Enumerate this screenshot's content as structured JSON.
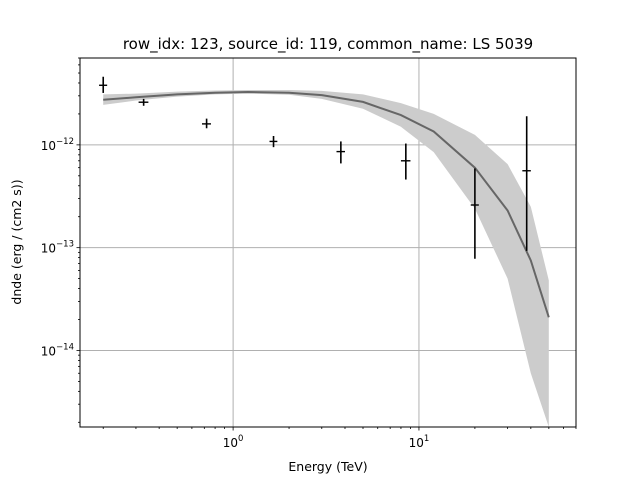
{
  "chart_data": {
    "type": "scatter",
    "title": "row_idx: 123, source_id: 119, common_name: LS 5039",
    "xlabel": "Energy (TeV)",
    "ylabel": "dnde (erg / (cm2 s))",
    "xscale": "log",
    "yscale": "log",
    "xlim": [
      0.15,
      70
    ],
    "ylim": [
      1.8e-15,
      7e-12
    ],
    "grid": true,
    "x_tick_labels": [
      {
        "value": 1,
        "base": "10",
        "exp": "0"
      },
      {
        "value": 10,
        "base": "10",
        "exp": "1"
      }
    ],
    "y_tick_labels": [
      {
        "value": 1e-14,
        "base": "10",
        "exp": "−14"
      },
      {
        "value": 1e-13,
        "base": "10",
        "exp": "−13"
      },
      {
        "value": 1e-12,
        "base": "10",
        "exp": "−12"
      }
    ],
    "flux_points": [
      {
        "x": 0.2,
        "x_lo": 0.19,
        "x_hi": 0.21,
        "y": 3.8e-12,
        "y_lo": 3.2e-12,
        "y_hi": 4.6e-12
      },
      {
        "x": 0.33,
        "x_lo": 0.31,
        "x_hi": 0.35,
        "y": 2.6e-12,
        "y_lo": 2.4e-12,
        "y_hi": 2.8e-12
      },
      {
        "x": 0.72,
        "x_lo": 0.68,
        "x_hi": 0.76,
        "y": 1.6e-12,
        "y_lo": 1.45e-12,
        "y_hi": 1.8e-12
      },
      {
        "x": 1.65,
        "x_lo": 1.57,
        "x_hi": 1.73,
        "y": 1.08e-12,
        "y_lo": 9.5e-13,
        "y_hi": 1.22e-12
      },
      {
        "x": 3.8,
        "x_lo": 3.6,
        "x_hi": 4.0,
        "y": 8.6e-13,
        "y_lo": 6.6e-13,
        "y_hi": 1.08e-12
      },
      {
        "x": 8.5,
        "x_lo": 8.0,
        "x_hi": 9.0,
        "y": 7e-13,
        "y_lo": 4.6e-13,
        "y_hi": 1.03e-12
      },
      {
        "x": 20,
        "x_lo": 19,
        "x_hi": 21,
        "y": 2.6e-13,
        "y_lo": 7.8e-14,
        "y_hi": 5.9e-13
      },
      {
        "x": 38,
        "x_lo": 36,
        "x_hi": 40,
        "y": 5.6e-13,
        "y_lo": 9.3e-14,
        "y_hi": 1.9e-12
      }
    ],
    "model_curve": {
      "x": [
        0.2,
        0.3,
        0.5,
        0.8,
        1.2,
        2,
        3,
        5,
        8,
        12,
        20,
        30,
        40,
        50
      ],
      "y": [
        2.75e-12,
        2.9e-12,
        3.1e-12,
        3.22e-12,
        3.27e-12,
        3.22e-12,
        3.05e-12,
        2.62e-12,
        1.95e-12,
        1.35e-12,
        6e-13,
        2.3e-13,
        7.5e-14,
        2.1e-14
      ],
      "y_lo": [
        2.45e-12,
        2.7e-12,
        2.95e-12,
        3.1e-12,
        3.15e-12,
        3.07e-12,
        2.8e-12,
        2.25e-12,
        1.5e-12,
        8.5e-13,
        2.4e-13,
        5e-14,
        6e-15,
        1.8e-15
      ],
      "y_hi": [
        3.1e-12,
        3.15e-12,
        3.3e-12,
        3.38e-12,
        3.42e-12,
        3.42e-12,
        3.35e-12,
        3.1e-12,
        2.55e-12,
        2e-12,
        1.25e-12,
        6.5e-13,
        2.5e-13,
        4.8e-14
      ]
    },
    "colors": {
      "points": "#000000",
      "curve": "#666666",
      "band": "#cccccc",
      "grid": "#b0b0b0"
    }
  }
}
